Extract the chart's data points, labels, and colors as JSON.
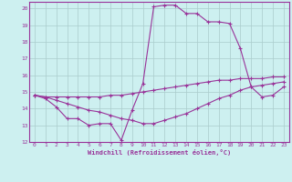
{
  "xlabel": "Windchill (Refroidissement éolien,°C)",
  "background_color": "#cdf0f0",
  "grid_color": "#aacccc",
  "line_color": "#993399",
  "xlim": [
    -0.5,
    23.5
  ],
  "ylim": [
    12,
    20.4
  ],
  "xticks": [
    0,
    1,
    2,
    3,
    4,
    5,
    6,
    7,
    8,
    9,
    10,
    11,
    12,
    13,
    14,
    15,
    16,
    17,
    18,
    19,
    20,
    21,
    22,
    23
  ],
  "yticks": [
    12,
    13,
    14,
    15,
    16,
    17,
    18,
    19,
    20
  ],
  "series": {
    "line1_x": [
      0,
      1,
      2,
      3,
      4,
      5,
      6,
      7,
      8,
      9,
      10,
      11,
      12,
      13,
      14,
      15,
      16,
      17,
      18,
      19,
      20,
      21,
      22,
      23
    ],
    "line1_y": [
      14.8,
      14.6,
      14.1,
      13.4,
      13.4,
      13.0,
      13.1,
      13.1,
      12.1,
      13.9,
      15.5,
      20.1,
      20.2,
      20.2,
      19.7,
      19.7,
      19.2,
      19.2,
      19.1,
      17.6,
      15.3,
      14.7,
      14.8,
      15.3
    ],
    "line2_x": [
      0,
      1,
      2,
      3,
      4,
      5,
      6,
      7,
      8,
      9,
      10,
      11,
      12,
      13,
      14,
      15,
      16,
      17,
      18,
      19,
      20,
      21,
      22,
      23
    ],
    "line2_y": [
      14.8,
      14.7,
      14.5,
      14.3,
      14.1,
      13.9,
      13.8,
      13.6,
      13.4,
      13.3,
      13.1,
      13.1,
      13.3,
      13.5,
      13.7,
      14.0,
      14.3,
      14.6,
      14.8,
      15.1,
      15.3,
      15.4,
      15.5,
      15.6
    ],
    "line3_x": [
      0,
      1,
      2,
      3,
      4,
      5,
      6,
      7,
      8,
      9,
      10,
      11,
      12,
      13,
      14,
      15,
      16,
      17,
      18,
      19,
      20,
      21,
      22,
      23
    ],
    "line3_y": [
      14.8,
      14.7,
      14.7,
      14.7,
      14.7,
      14.7,
      14.7,
      14.8,
      14.8,
      14.9,
      15.0,
      15.1,
      15.2,
      15.3,
      15.4,
      15.5,
      15.6,
      15.7,
      15.7,
      15.8,
      15.8,
      15.8,
      15.9,
      15.9
    ]
  }
}
